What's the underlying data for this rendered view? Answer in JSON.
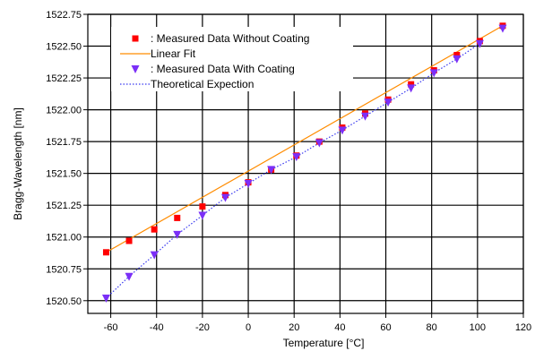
{
  "chart_data": {
    "type": "scatter",
    "xlabel": "Temperature [°C]",
    "ylabel": "Bragg-Wavelength [nm]",
    "xlim": [
      -70,
      120
    ],
    "ylim": [
      1520.4,
      1522.75
    ],
    "x_ticks": [
      -60,
      -40,
      -20,
      0,
      20,
      40,
      60,
      80,
      100,
      120
    ],
    "x_tick_labels": [
      "-60",
      "-40",
      "-20",
      "0",
      "20",
      "40",
      "60",
      "80",
      "100",
      "120"
    ],
    "y_ticks": [
      1520.5,
      1520.75,
      1521.0,
      1521.25,
      1521.5,
      1521.75,
      1522.0,
      1522.25,
      1522.5,
      1522.75
    ],
    "y_tick_labels": [
      "1520.50",
      "1520.75",
      "1521.00",
      "1521.25",
      "1521.50",
      "1521.75",
      "1522.00",
      "1522.25",
      "1522.50",
      "1522.75"
    ],
    "grid": true,
    "legend_position": "top-left",
    "series": [
      {
        "name": ": Measured Data Without Coating",
        "kind": "scatter",
        "marker": "square",
        "color": "#ff0000",
        "x": [
          -62,
          -52,
          -41,
          -31,
          -20,
          -10,
          0,
          10,
          21,
          31,
          41,
          51,
          61,
          71,
          81,
          91,
          101,
          111
        ],
        "y": [
          1520.88,
          1520.97,
          1521.06,
          1521.15,
          1521.24,
          1521.33,
          1521.43,
          1521.53,
          1521.64,
          1521.75,
          1521.86,
          1521.97,
          1522.08,
          1522.2,
          1522.31,
          1522.43,
          1522.54,
          1522.66
        ]
      },
      {
        "name": "Linear Fit",
        "kind": "line",
        "style": "solid",
        "color": "#ff8c00",
        "x": [
          -62,
          111
        ],
        "y": [
          1520.88,
          1522.66
        ]
      },
      {
        "name": ": Measured Data With Coating",
        "kind": "scatter",
        "marker": "triangle-down",
        "color": "#7b2ff7",
        "x": [
          -62,
          -52,
          -41,
          -31,
          -20,
          -10,
          0,
          10,
          21,
          31,
          41,
          51,
          61,
          71,
          81,
          91,
          101,
          111
        ],
        "y": [
          1520.52,
          1520.69,
          1520.86,
          1521.02,
          1521.17,
          1521.31,
          1521.42,
          1521.53,
          1521.63,
          1521.74,
          1521.84,
          1521.95,
          1522.06,
          1522.17,
          1522.29,
          1522.4,
          1522.52,
          1522.64
        ]
      },
      {
        "name": "Theoretical Expection",
        "kind": "line",
        "style": "dotted",
        "color": "#3a3af0",
        "x": [
          -62,
          -52,
          -41,
          -31,
          -20,
          -10,
          0,
          10,
          21,
          31,
          41,
          51,
          61,
          71,
          81,
          91,
          101
        ],
        "y": [
          1520.52,
          1520.69,
          1520.86,
          1521.02,
          1521.17,
          1521.31,
          1521.42,
          1521.53,
          1521.63,
          1521.74,
          1521.84,
          1521.95,
          1522.06,
          1522.17,
          1522.29,
          1522.4,
          1522.52
        ]
      }
    ]
  }
}
